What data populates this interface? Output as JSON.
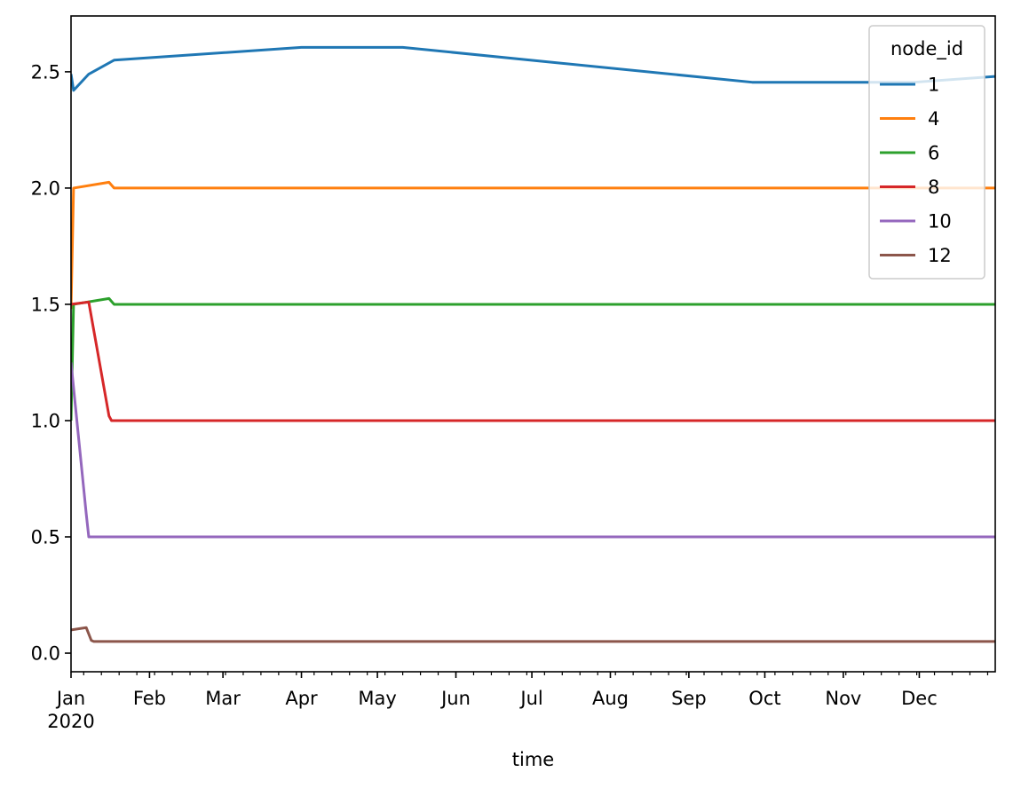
{
  "chart_data": {
    "type": "line",
    "xlabel": "time",
    "ylabel": "",
    "x_axis": {
      "domain": [
        "2020-01-01",
        "2020-12-31"
      ],
      "major_ticks": [
        {
          "date": "2020-01-01",
          "label": "Jan",
          "sublabel": "2020"
        },
        {
          "date": "2020-02-01",
          "label": "Feb"
        },
        {
          "date": "2020-03-01",
          "label": "Mar"
        },
        {
          "date": "2020-04-01",
          "label": "Apr"
        },
        {
          "date": "2020-05-01",
          "label": "May"
        },
        {
          "date": "2020-06-01",
          "label": "Jun"
        },
        {
          "date": "2020-07-01",
          "label": "Jul"
        },
        {
          "date": "2020-08-01",
          "label": "Aug"
        },
        {
          "date": "2020-09-01",
          "label": "Sep"
        },
        {
          "date": "2020-10-01",
          "label": "Oct"
        },
        {
          "date": "2020-11-01",
          "label": "Nov"
        },
        {
          "date": "2020-12-01",
          "label": "Dec"
        }
      ]
    },
    "y_axis": {
      "ylim": [
        -0.08,
        2.74
      ],
      "ticks": [
        0.0,
        0.5,
        1.0,
        1.5,
        2.0,
        2.5
      ],
      "tick_labels": [
        "0.0",
        "0.5",
        "1.0",
        "1.5",
        "2.0",
        "2.5"
      ]
    },
    "grid": false,
    "legend": {
      "title": "node_id",
      "position": "top-right"
    },
    "series": [
      {
        "name": "1",
        "color": "#1f77b4",
        "points": [
          [
            "2020-01-01",
            2.49
          ],
          [
            "2020-01-02",
            2.42
          ],
          [
            "2020-01-08",
            2.49
          ],
          [
            "2020-01-18",
            2.55
          ],
          [
            "2020-04-01",
            2.605
          ],
          [
            "2020-05-11",
            2.605
          ],
          [
            "2020-09-26",
            2.455
          ],
          [
            "2020-11-29",
            2.455
          ],
          [
            "2020-12-31",
            2.48
          ]
        ]
      },
      {
        "name": "4",
        "color": "#ff7f0e",
        "points": [
          [
            "2020-01-01",
            1.48
          ],
          [
            "2020-01-02",
            2.0
          ],
          [
            "2020-01-16",
            2.025
          ],
          [
            "2020-01-18",
            2.0
          ],
          [
            "2020-12-31",
            2.0
          ]
        ]
      },
      {
        "name": "6",
        "color": "#2ca02c",
        "points": [
          [
            "2020-01-01",
            1.0
          ],
          [
            "2020-01-02",
            1.5
          ],
          [
            "2020-01-16",
            1.525
          ],
          [
            "2020-01-18",
            1.5
          ],
          [
            "2020-12-31",
            1.5
          ]
        ]
      },
      {
        "name": "8",
        "color": "#d62728",
        "points": [
          [
            "2020-01-01",
            1.5
          ],
          [
            "2020-01-08",
            1.51
          ],
          [
            "2020-01-16",
            1.02
          ],
          [
            "2020-01-17",
            1.0
          ],
          [
            "2020-12-31",
            1.0
          ]
        ]
      },
      {
        "name": "10",
        "color": "#9467bd",
        "points": [
          [
            "2020-01-01",
            1.25
          ],
          [
            "2020-01-07",
            0.6
          ],
          [
            "2020-01-08",
            0.5
          ],
          [
            "2020-12-31",
            0.5
          ]
        ]
      },
      {
        "name": "12",
        "color": "#8c564b",
        "points": [
          [
            "2020-01-01",
            0.1
          ],
          [
            "2020-01-07",
            0.11
          ],
          [
            "2020-01-09",
            0.055
          ],
          [
            "2020-01-10",
            0.05
          ],
          [
            "2020-12-31",
            0.05
          ]
        ]
      }
    ]
  }
}
